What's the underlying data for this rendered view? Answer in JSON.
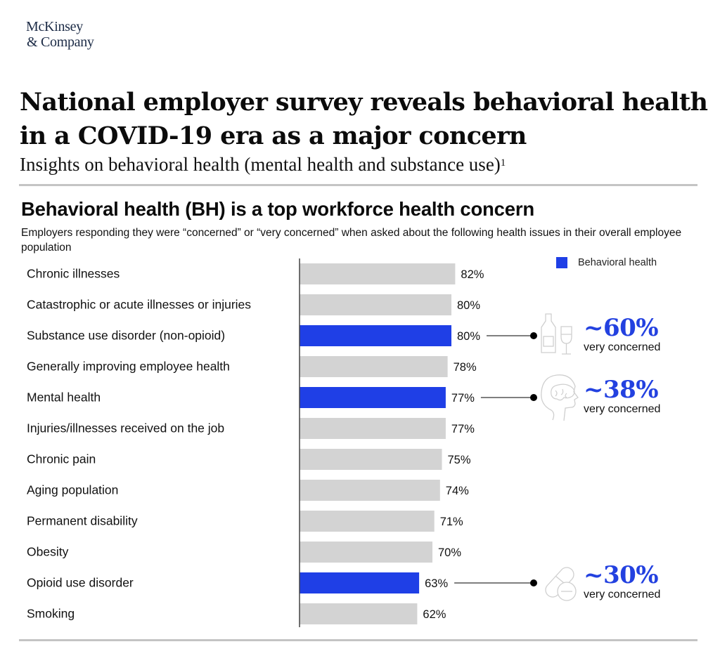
{
  "brand": {
    "line1": "McKinsey",
    "line2": "& Company"
  },
  "header": {
    "title": "National employer survey reveals behavioral health in a COVID-19 era as a major concern",
    "subtitle": "Insights on behavioral health (mental health and substance use)",
    "subtitle_footnote": "1"
  },
  "colors": {
    "behavioral_health": "#1f3fe6",
    "other": "#d3d3d3",
    "callout_text": "#2341e0",
    "icon_stroke": "#cfcfcf"
  },
  "chart_data": {
    "type": "bar",
    "orientation": "horizontal",
    "title": "Behavioral health (BH) is a top workforce health concern",
    "subtitle": "Employers responding they were “concerned” or “very concerned” when asked about the following health issues in their overall employee population",
    "legend": {
      "label": "Behavioral health",
      "placement": "top-right"
    },
    "value_suffix": "%",
    "xlim": [
      0,
      100
    ],
    "grid": false,
    "categories": [
      "Chronic illnesses",
      "Catastrophic or acute illnesses or injuries",
      "Substance use disorder (non-opioid)",
      "Generally improving employee health",
      "Mental health",
      "Injuries/illnesses received on the job",
      "Chronic pain",
      "Aging population",
      "Permanent disability",
      "Obesity",
      "Opioid use disorder",
      "Smoking"
    ],
    "values": [
      82,
      80,
      80,
      78,
      77,
      77,
      75,
      74,
      71,
      70,
      63,
      62
    ],
    "labels": [
      "82%",
      "80%",
      "80%",
      "78%",
      "77%",
      "77%",
      "75%",
      "74%",
      "71%",
      "70%",
      "63%",
      "62%"
    ],
    "highlight": [
      false,
      false,
      true,
      false,
      true,
      false,
      false,
      false,
      false,
      false,
      true,
      false
    ],
    "annotations": [
      {
        "category": "Substance use disorder (non-opioid)",
        "value": "~60%",
        "text": "very concerned",
        "icon": "bottle-and-glass-icon"
      },
      {
        "category": "Mental health",
        "value": "~38%",
        "text": "very concerned",
        "icon": "brain-head-icon"
      },
      {
        "category": "Opioid use disorder",
        "value": "~30%",
        "text": "very concerned",
        "icon": "pills-icon"
      }
    ]
  }
}
